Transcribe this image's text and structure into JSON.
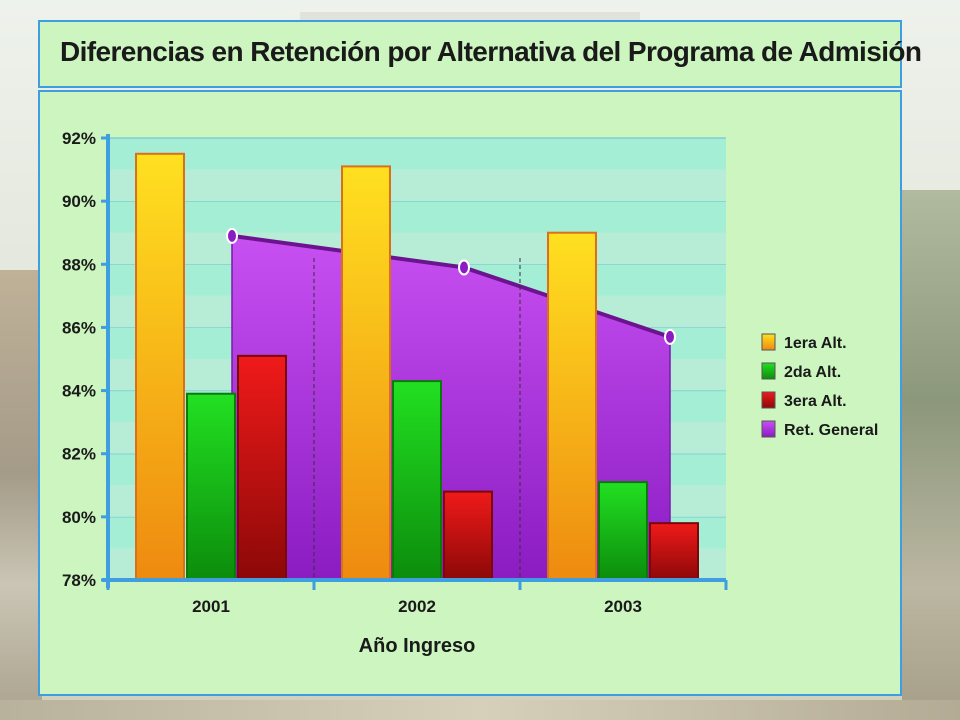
{
  "title": "Diferencias en Retención por Alternativa del Programa de Admisión",
  "chart_data": {
    "type": "bar",
    "title": "Diferencias en Retención por Alternativa del Programa de Admisión",
    "xlabel": "Año Ingreso",
    "ylabel": "",
    "categories": [
      "2001",
      "2002",
      "2003"
    ],
    "ylim": [
      78,
      92
    ],
    "yticks": [
      78,
      80,
      82,
      84,
      86,
      88,
      90,
      92
    ],
    "ytick_labels": [
      "78%",
      "80%",
      "82%",
      "84%",
      "86%",
      "88%",
      "90%",
      "92%"
    ],
    "grid": "horizontal bands",
    "legend_position": "right",
    "series": [
      {
        "name": "1era Alt.",
        "type": "bar",
        "values": [
          91.5,
          91.1,
          89.0
        ],
        "color": "#f6a61a"
      },
      {
        "name": "2da Alt.",
        "type": "bar",
        "values": [
          83.9,
          84.3,
          81.1
        ],
        "color": "#19c219"
      },
      {
        "name": "3era Alt.",
        "type": "bar",
        "values": [
          85.1,
          80.8,
          79.8
        ],
        "color": "#d41010"
      },
      {
        "name": "Ret. General",
        "type": "area",
        "values": [
          88.9,
          87.9,
          85.7
        ],
        "color": "#a52fd6"
      }
    ]
  }
}
